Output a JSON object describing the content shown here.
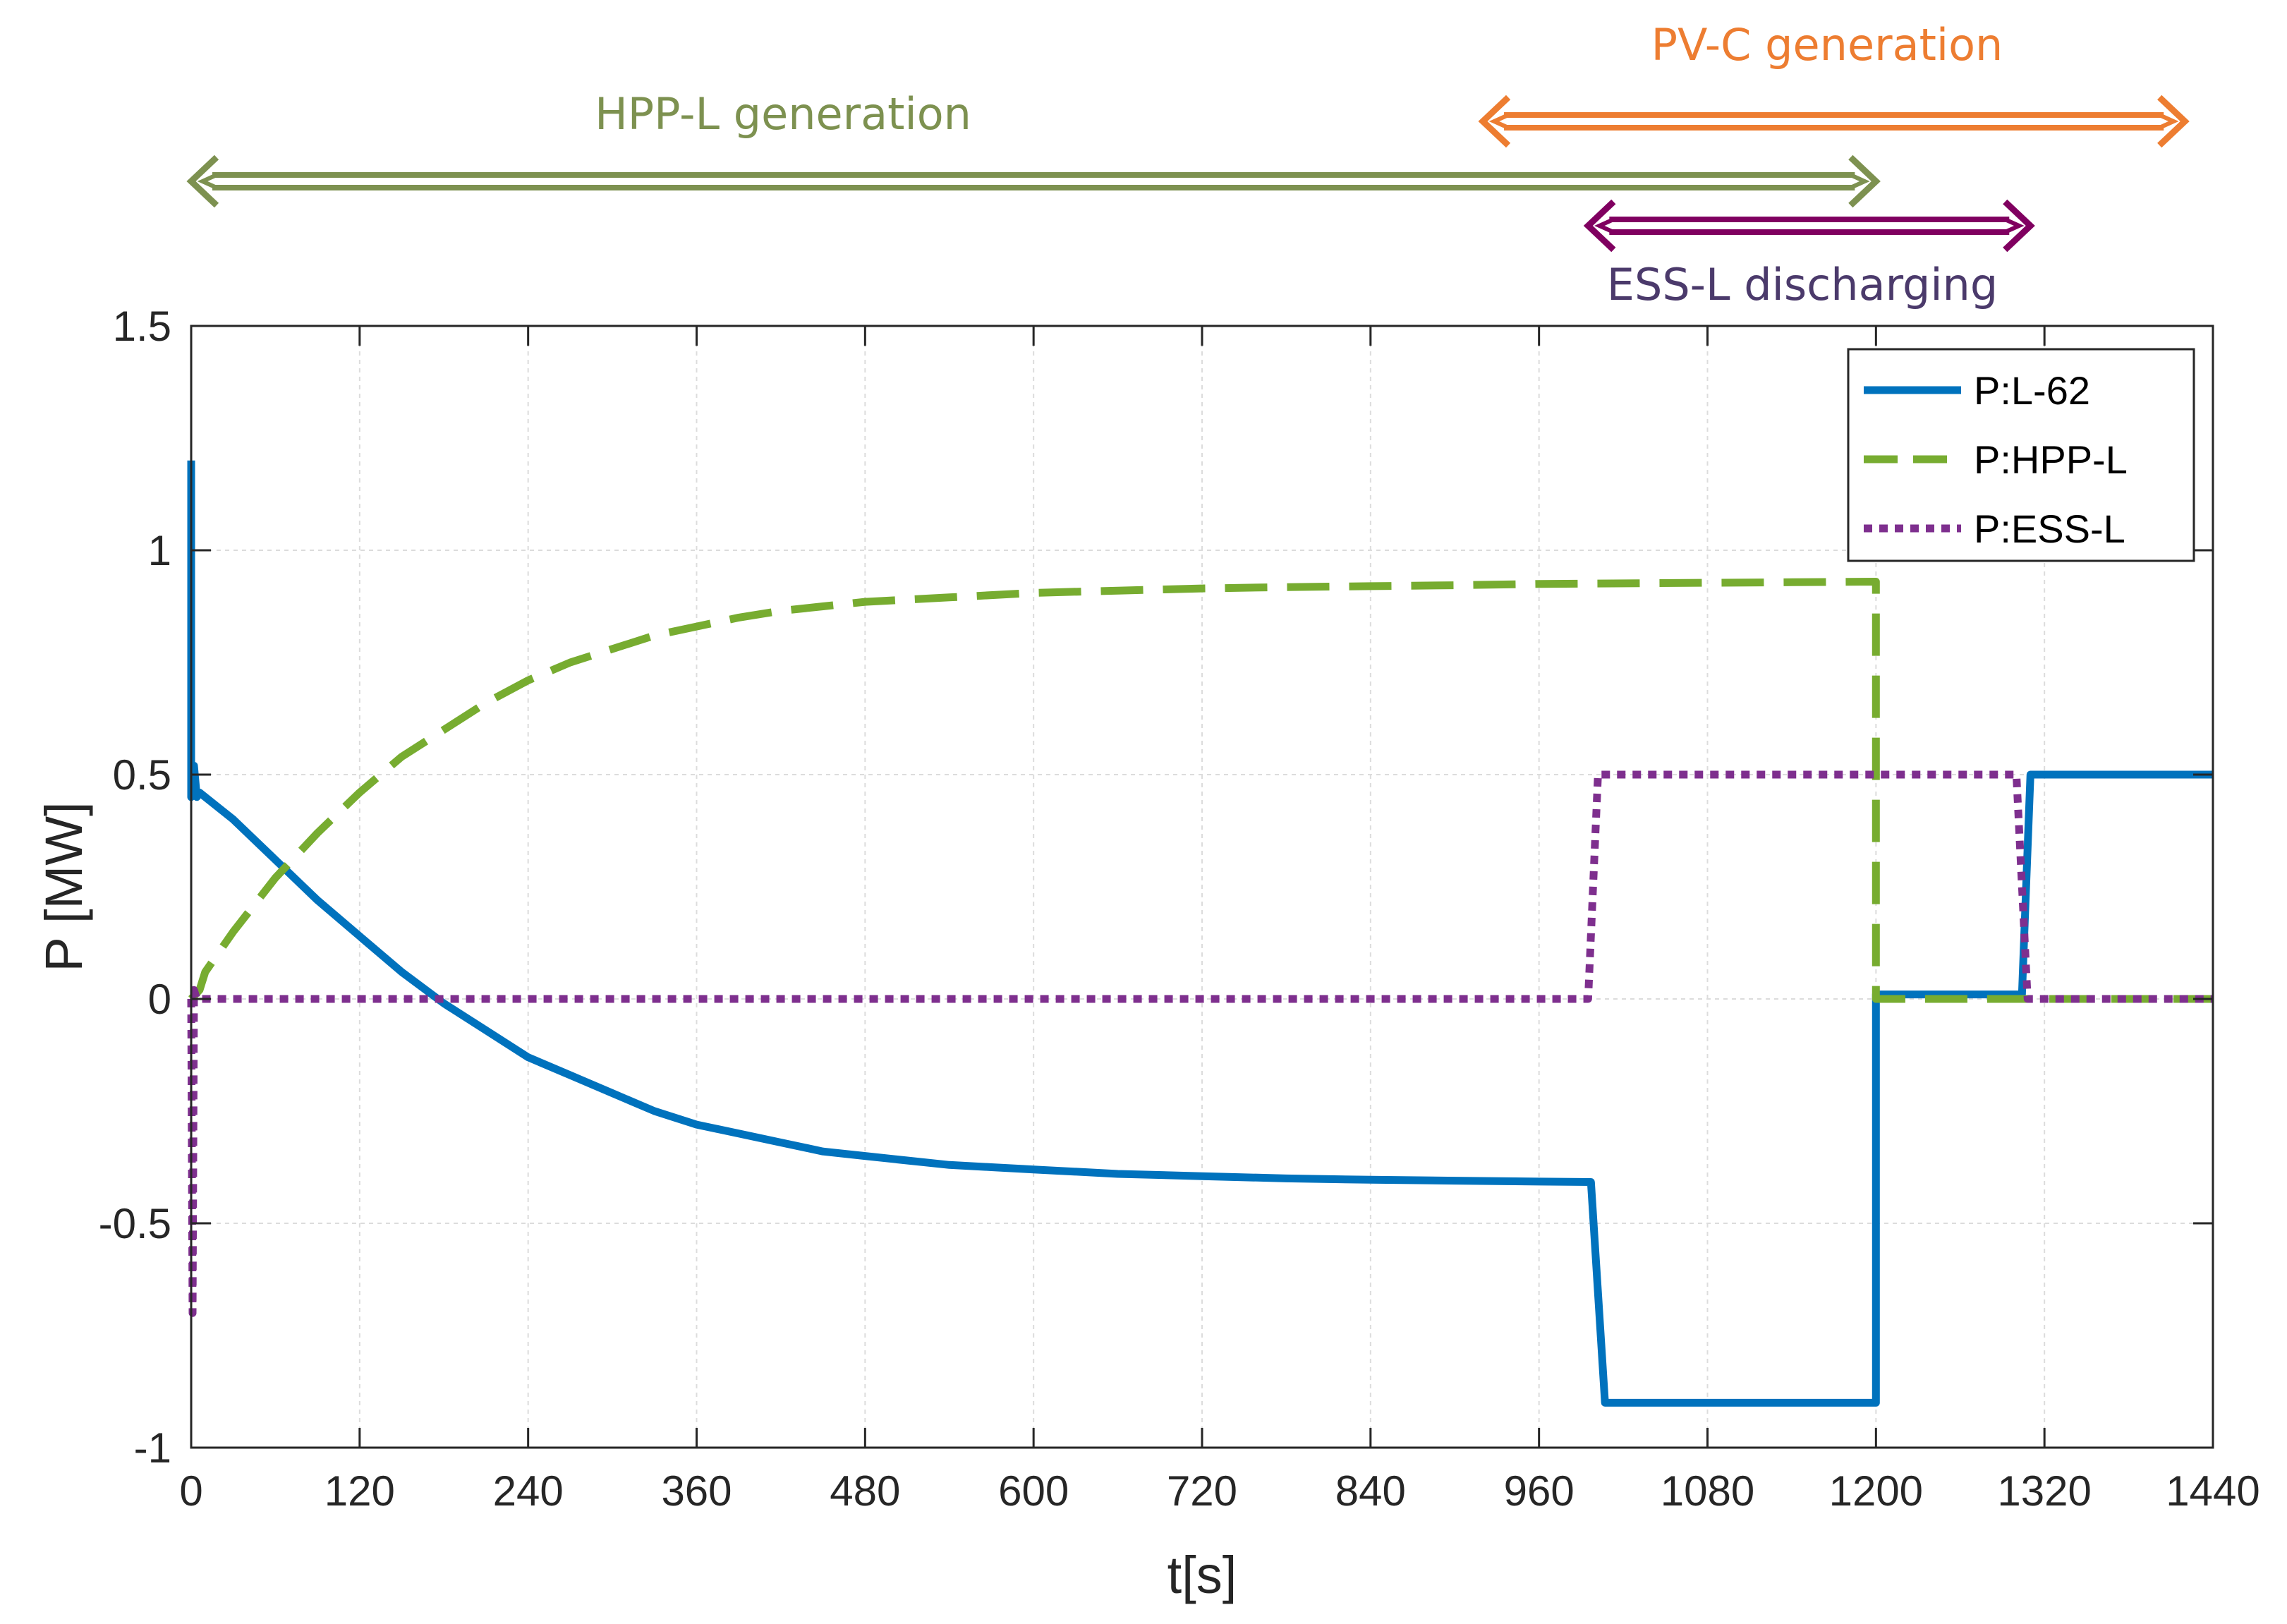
{
  "chart_data": {
    "type": "line",
    "title": "",
    "xlabel": "t[s]",
    "ylabel": "P [MW]",
    "xlim": [
      0,
      1440
    ],
    "ylim": [
      -1,
      1.5
    ],
    "xticks": [
      0,
      120,
      240,
      360,
      480,
      600,
      720,
      840,
      960,
      1080,
      1200,
      1320,
      1440
    ],
    "xtick_labels": [
      "0",
      "120",
      "240",
      "360",
      "480",
      "600",
      "720",
      "840",
      "960",
      "1080",
      "1200",
      "1320",
      "1440"
    ],
    "yticks": [
      -1,
      -0.5,
      0,
      0.5,
      1,
      1.5
    ],
    "ytick_labels": [
      "-1",
      "-0.5",
      "0",
      "0.5",
      "1",
      "1.5"
    ],
    "grid": true,
    "legend_position": "top-right",
    "series": [
      {
        "name": "P:L-62",
        "color": "#0072BD",
        "style": "solid",
        "points": [
          [
            0,
            1.2
          ],
          [
            0,
            0.45
          ],
          [
            2,
            0.52
          ],
          [
            4,
            0.45
          ],
          [
            6,
            0.46
          ],
          [
            30,
            0.4
          ],
          [
            60,
            0.31
          ],
          [
            90,
            0.22
          ],
          [
            120,
            0.14
          ],
          [
            150,
            0.06
          ],
          [
            180,
            -0.01
          ],
          [
            210,
            -0.07
          ],
          [
            240,
            -0.13
          ],
          [
            270,
            -0.17
          ],
          [
            300,
            -0.21
          ],
          [
            330,
            -0.25
          ],
          [
            360,
            -0.28
          ],
          [
            390,
            -0.3
          ],
          [
            420,
            -0.32
          ],
          [
            450,
            -0.34
          ],
          [
            480,
            -0.35
          ],
          [
            510,
            -0.36
          ],
          [
            540,
            -0.37
          ],
          [
            570,
            -0.375
          ],
          [
            600,
            -0.38
          ],
          [
            660,
            -0.39
          ],
          [
            720,
            -0.395
          ],
          [
            780,
            -0.4
          ],
          [
            840,
            -0.403
          ],
          [
            900,
            -0.405
          ],
          [
            960,
            -0.407
          ],
          [
            997,
            -0.408
          ],
          [
            1007,
            -0.9
          ],
          [
            1200,
            -0.9
          ],
          [
            1200,
            0.01
          ],
          [
            1304,
            0.01
          ],
          [
            1310,
            0.5
          ],
          [
            1440,
            0.5
          ]
        ]
      },
      {
        "name": "P:HPP-L",
        "color": "#77AC30",
        "style": "dashed",
        "points": [
          [
            0,
            0
          ],
          [
            6,
            0.02
          ],
          [
            10,
            0.06
          ],
          [
            30,
            0.15
          ],
          [
            60,
            0.27
          ],
          [
            90,
            0.37
          ],
          [
            120,
            0.46
          ],
          [
            150,
            0.54
          ],
          [
            180,
            0.6
          ],
          [
            210,
            0.66
          ],
          [
            240,
            0.71
          ],
          [
            270,
            0.75
          ],
          [
            300,
            0.78
          ],
          [
            330,
            0.81
          ],
          [
            360,
            0.83
          ],
          [
            390,
            0.85
          ],
          [
            420,
            0.865
          ],
          [
            450,
            0.875
          ],
          [
            480,
            0.885
          ],
          [
            540,
            0.895
          ],
          [
            600,
            0.905
          ],
          [
            660,
            0.91
          ],
          [
            720,
            0.915
          ],
          [
            780,
            0.918
          ],
          [
            840,
            0.92
          ],
          [
            900,
            0.922
          ],
          [
            960,
            0.925
          ],
          [
            1200,
            0.93
          ],
          [
            1200,
            0
          ],
          [
            1440,
            0
          ]
        ]
      },
      {
        "name": "P:ESS-L",
        "color": "#7E2F8E",
        "style": "dotted",
        "points": [
          [
            0,
            0
          ],
          [
            1,
            -0.7
          ],
          [
            2,
            0.02
          ],
          [
            4,
            0
          ],
          [
            995,
            0
          ],
          [
            1002,
            0.5
          ],
          [
            1300,
            0.5
          ],
          [
            1308,
            0
          ],
          [
            1440,
            0
          ]
        ]
      }
    ],
    "annotations": [
      {
        "label": "HPP-L generation",
        "from": 0,
        "to": 1200,
        "color": "#7D9150"
      },
      {
        "label": "PV-C generation",
        "from": 920,
        "to": 1420,
        "color": "#ED7D31"
      },
      {
        "label": "ESS-L discharging",
        "from": 995,
        "to": 1310,
        "color": "#800060"
      }
    ]
  }
}
